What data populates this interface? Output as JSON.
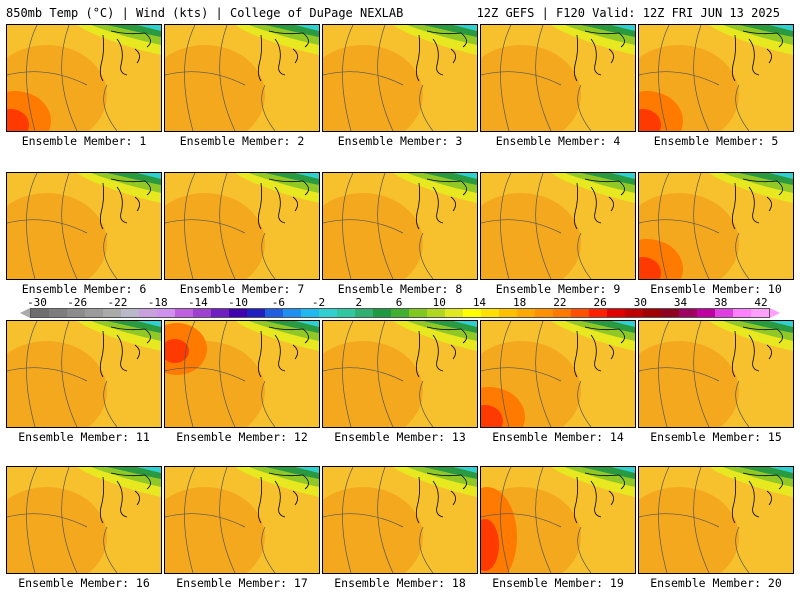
{
  "header": {
    "left": "850mb Temp (°C) | Wind (kts) | College of DuPage NEXLAB",
    "right": "12Z GEFS | F120 Valid: 12Z FRI JUN 13 2025"
  },
  "panels": [
    {
      "label": "Ensemble Member: 1",
      "warm": "sw"
    },
    {
      "label": "Ensemble Member: 2",
      "warm": "none"
    },
    {
      "label": "Ensemble Member: 3",
      "warm": "none"
    },
    {
      "label": "Ensemble Member: 4",
      "warm": "none"
    },
    {
      "label": "Ensemble Member: 5",
      "warm": "sw"
    },
    {
      "label": "Ensemble Member: 6",
      "warm": "none"
    },
    {
      "label": "Ensemble Member: 7",
      "warm": "none"
    },
    {
      "label": "Ensemble Member: 8",
      "warm": "none"
    },
    {
      "label": "Ensemble Member: 9",
      "warm": "none"
    },
    {
      "label": "Ensemble Member: 10",
      "warm": "sw"
    },
    {
      "label": "Ensemble Member: 11",
      "warm": "none"
    },
    {
      "label": "Ensemble Member: 12",
      "warm": "nw"
    },
    {
      "label": "Ensemble Member: 13",
      "warm": "none"
    },
    {
      "label": "Ensemble Member: 14",
      "warm": "sw"
    },
    {
      "label": "Ensemble Member: 15",
      "warm": "none"
    },
    {
      "label": "Ensemble Member: 16",
      "warm": "none"
    },
    {
      "label": "Ensemble Member: 17",
      "warm": "none"
    },
    {
      "label": "Ensemble Member: 18",
      "warm": "none"
    },
    {
      "label": "Ensemble Member: 19",
      "warm": "w"
    },
    {
      "label": "Ensemble Member: 20",
      "warm": "none"
    }
  ],
  "scale": {
    "ticks": [
      "-30",
      "-26",
      "-22",
      "-18",
      "-14",
      "-10",
      "-6",
      "-2",
      "2",
      "6",
      "10",
      "14",
      "18",
      "22",
      "26",
      "30",
      "34",
      "38",
      "42"
    ],
    "colors": [
      "#6e6e6e",
      "#7d7d7d",
      "#8c8c8c",
      "#9b9b9b",
      "#aaaaaa",
      "#b8b8c8",
      "#c8a0e0",
      "#d090f0",
      "#c060e0",
      "#a040d0",
      "#7020c0",
      "#4000b0",
      "#2020c0",
      "#2060e0",
      "#2090f0",
      "#20b8f0",
      "#30d0d0",
      "#30c8a0",
      "#30b070",
      "#209a40",
      "#40b030",
      "#80c820",
      "#b0d820",
      "#e0e820",
      "#ffff00",
      "#ffe000",
      "#ffc000",
      "#ffa800",
      "#ff9000",
      "#ff7800",
      "#ff5000",
      "#ff2000",
      "#e00000",
      "#c00000",
      "#a00000",
      "#900020",
      "#a00060",
      "#c000a0",
      "#e040e0",
      "#ff80ff",
      "#ffa0ff"
    ]
  }
}
